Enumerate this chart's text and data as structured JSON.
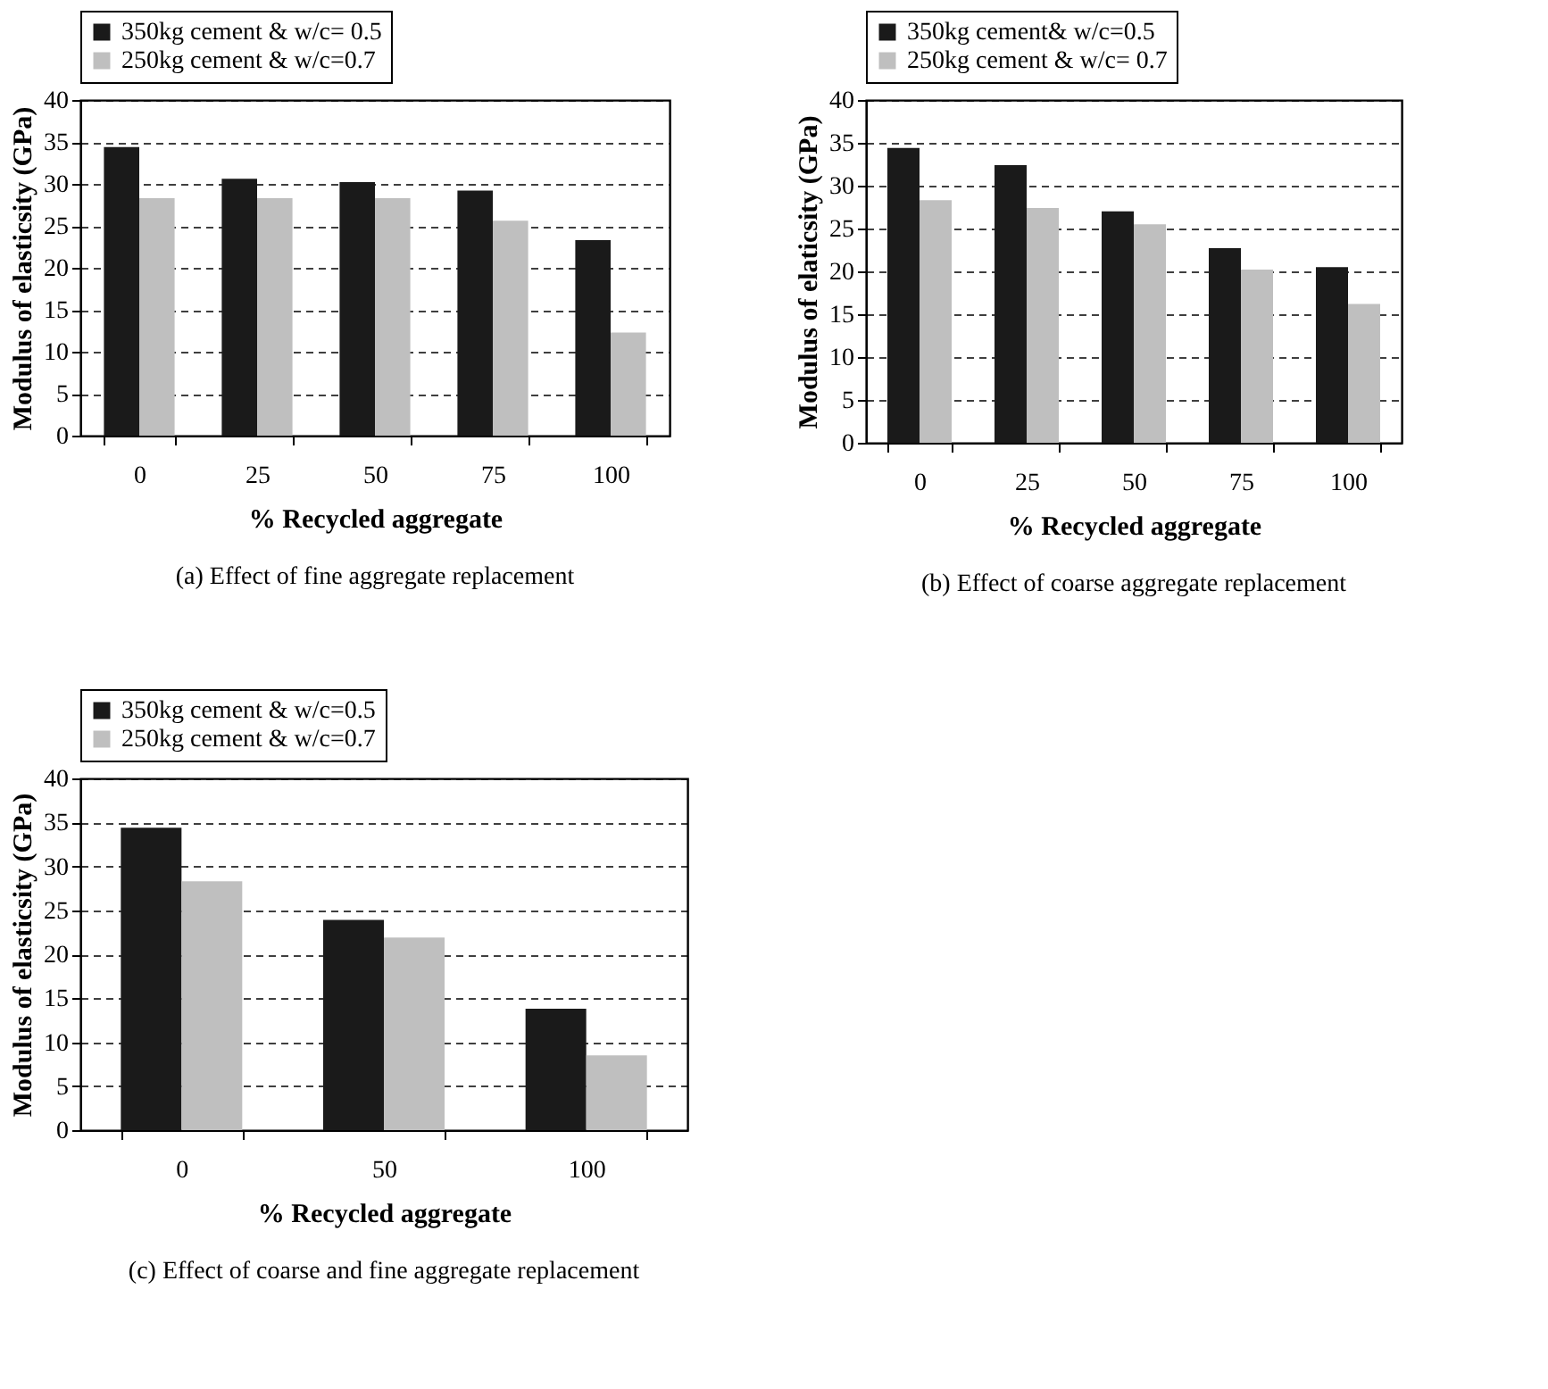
{
  "chart_data": [
    {
      "type": "bar",
      "xlabel": "%  Recycled aggregate",
      "ylabel": "Modulus of elasticsity (GPa)",
      "categories": [
        "0",
        "25",
        "50",
        "75",
        "100"
      ],
      "series": [
        {
          "name": "350kg cement & w/c= 0.5",
          "color": "#1a1a1a",
          "values": [
            34.4,
            30.6,
            30.2,
            29.2,
            23.3
          ]
        },
        {
          "name": "250kg cement & w/c=0.7",
          "color": "#bfbfbf",
          "values": [
            28.3,
            28.3,
            28.3,
            25.6,
            12.3
          ]
        }
      ],
      "ylim": [
        0,
        40
      ],
      "yticks": [
        0,
        5,
        10,
        15,
        20,
        25,
        30,
        35,
        40
      ],
      "grid": "y",
      "legend": "top",
      "annotations": [
        "(a) Effect of fine aggregate replacement"
      ]
    },
    {
      "type": "bar",
      "xlabel": "% Recycled aggregate",
      "ylabel": "Modulus of elaticsity (GPa)",
      "categories": [
        "0",
        "25",
        "50",
        "75",
        "100"
      ],
      "series": [
        {
          "name": "350kg cement& w/c=0.5",
          "color": "#1a1a1a",
          "values": [
            34.4,
            32.4,
            27.0,
            22.7,
            20.5
          ]
        },
        {
          "name": "250kg cement & w/c= 0.7",
          "color": "#bfbfbf",
          "values": [
            28.3,
            27.4,
            25.5,
            20.2,
            16.2
          ]
        }
      ],
      "ylim": [
        0,
        40
      ],
      "yticks": [
        0,
        5,
        10,
        15,
        20,
        25,
        30,
        35,
        40
      ],
      "grid": "y",
      "legend": "top",
      "annotations": [
        "(b) Effect of coarse aggregate replacement"
      ]
    },
    {
      "type": "bar",
      "xlabel": "% Recycled aggregate",
      "ylabel": "Modulus of elasticsity (GPa)",
      "categories": [
        "0",
        "50",
        "100"
      ],
      "series": [
        {
          "name": "350kg cement & w/c=0.5",
          "color": "#1a1a1a",
          "values": [
            34.4,
            23.9,
            13.8
          ]
        },
        {
          "name": "250kg cement & w/c=0.7",
          "color": "#bfbfbf",
          "values": [
            28.3,
            21.9,
            8.5
          ]
        }
      ],
      "ylim": [
        0,
        40
      ],
      "yticks": [
        0,
        5,
        10,
        15,
        20,
        25,
        30,
        35,
        40
      ],
      "grid": "y",
      "legend": "top",
      "annotations": [
        "(c) Effect of coarse and fine aggregate replacement"
      ]
    }
  ]
}
